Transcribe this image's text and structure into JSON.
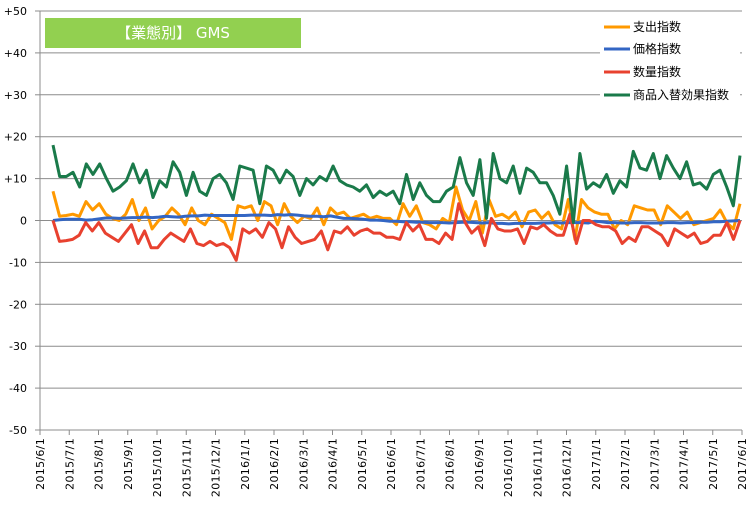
{
  "chart_data": {
    "type": "line",
    "title": "【業態別】 GMS",
    "title_box_color": "#92d050",
    "ylim": [
      -50,
      50
    ],
    "y_ticks": [
      50,
      40,
      30,
      20,
      10,
      0,
      -10,
      -20,
      -30,
      -40,
      -50
    ],
    "y_tick_labels": [
      "+50",
      "+40",
      "+30",
      "+20",
      "+10",
      "0",
      "-10",
      "-20",
      "-30",
      "-40",
      "-50"
    ],
    "x_tick_labels": [
      "2015/6/1",
      "2015/7/1",
      "2015/8/1",
      "2015/9/1",
      "2015/10/1",
      "2015/11/1",
      "2015/12/1",
      "2016/1/1",
      "2016/2/1",
      "2016/3/1",
      "2016/4/1",
      "2016/5/1",
      "2016/6/1",
      "2016/7/1",
      "2016/8/1",
      "2016/9/1",
      "2016/10/1",
      "2016/11/1",
      "2016/12/1",
      "2017/1/1",
      "2017/2/1",
      "2017/3/1",
      "2017/4/1",
      "2017/5/1",
      "2017/6/1"
    ],
    "grid": true,
    "legend_placement": "top-right",
    "series": [
      {
        "name": "支出指数",
        "color": "#ff9900",
        "values": [
          7,
          1,
          1.2,
          1.5,
          1,
          4.5,
          2.5,
          4,
          1.5,
          0.5,
          0,
          1.5,
          5,
          0,
          3,
          -2,
          0,
          1,
          3,
          1.5,
          -1,
          3,
          0,
          -1,
          1.5,
          0.5,
          -0.5,
          -4.5,
          3.5,
          3,
          3.5,
          0,
          4.5,
          3.5,
          -1,
          4,
          1,
          -0.5,
          1,
          0.5,
          3,
          -1,
          3,
          1.5,
          2,
          0.5,
          1,
          1.5,
          0.5,
          1,
          0.5,
          0.5,
          -1,
          4,
          1,
          3.5,
          -0.5,
          -1,
          -2,
          0.5,
          -0.5,
          8,
          2.5,
          0,
          4.5,
          -3,
          5,
          1,
          1.5,
          0.5,
          2,
          -1.5,
          2,
          2.5,
          0.5,
          2,
          -1,
          -2,
          5,
          -4.5,
          5,
          3,
          2,
          1.5,
          1.5,
          -2,
          0,
          -1,
          3.5,
          3,
          2.5,
          2.5,
          -1,
          3.5,
          2,
          0.5,
          2,
          -1,
          -0.5,
          0,
          0.5,
          2.5,
          -0.5,
          -2,
          4
        ]
      },
      {
        "name": "価格指数",
        "color": "#3366c4",
        "values": [
          0,
          0.2,
          0.3,
          0.3,
          0.3,
          0.1,
          0.2,
          0.4,
          0.6,
          0.6,
          0.5,
          0.6,
          0.7,
          0.7,
          0.8,
          0.7,
          0.8,
          1,
          0.9,
          0.8,
          1,
          1.1,
          1.1,
          1.3,
          1.2,
          1.2,
          1.2,
          1.2,
          1.2,
          1.2,
          1.3,
          1.3,
          1.3,
          1.2,
          1.4,
          1.3,
          1.4,
          1.3,
          1.1,
          1,
          1,
          0.9,
          1.1,
          0.8,
          0.5,
          0.5,
          0.4,
          0.3,
          0.1,
          0.1,
          0,
          -0.2,
          -0.2,
          -0.3,
          -0.3,
          -0.4,
          -0.4,
          -0.5,
          -0.5,
          -0.5,
          -0.6,
          -0.5,
          -0.4,
          -0.4,
          -0.5,
          -0.6,
          -0.5,
          -0.7,
          -0.7,
          -0.8,
          -0.7,
          -0.7,
          -0.7,
          -0.7,
          -0.6,
          -0.6,
          -0.5,
          -0.6,
          -0.5,
          -0.5,
          -0.5,
          -0.6,
          -0.2,
          -0.3,
          -0.5,
          -0.5,
          -0.6,
          -0.6,
          -0.5,
          -0.5,
          -0.6,
          -0.6,
          -0.6,
          -0.5,
          -0.5,
          -0.6,
          -0.5,
          -0.5,
          -0.4,
          -0.4,
          -0.3,
          -0.3,
          -0.2,
          -0.1,
          0
        ]
      },
      {
        "name": "数量指数",
        "color": "#e8412f",
        "values": [
          0,
          -5,
          -4.8,
          -4.5,
          -3.5,
          -0.5,
          -2.5,
          -0.5,
          -3,
          -4,
          -5,
          -3,
          -1,
          -5.5,
          -2.5,
          -6.5,
          -6.5,
          -4.5,
          -3,
          -4,
          -5,
          -2,
          -5.5,
          -6,
          -5,
          -6,
          -5.5,
          -6.5,
          -9.5,
          -2,
          -3,
          -2,
          -4,
          -0.5,
          -2,
          -6.5,
          -1.5,
          -4,
          -5.5,
          -5,
          -4.5,
          -2.5,
          -7,
          -2.5,
          -3,
          -1.5,
          -3.5,
          -2.5,
          -2,
          -3,
          -3,
          -4,
          -4,
          -4.5,
          -0.5,
          -2.5,
          -1,
          -4.5,
          -4.5,
          -5.5,
          -3,
          -4.5,
          4,
          -0.5,
          -3,
          -1.5,
          -6,
          0.5,
          -2,
          -2.5,
          -2.5,
          -2,
          -5.5,
          -1.5,
          -2,
          -1,
          -2.5,
          -3.5,
          -3.5,
          1.5,
          -5.5,
          0,
          0,
          -1,
          -1.5,
          -1.5,
          -2.5,
          -5.5,
          -4,
          -5,
          -1.5,
          -1.5,
          -2.5,
          -3.5,
          -6,
          -2,
          -3,
          -4,
          -3,
          -5.5,
          -5,
          -3.5,
          -3.5,
          -0.5,
          -4.5,
          0
        ]
      },
      {
        "name": "商品入替効果指数",
        "color": "#1a7a4a",
        "values": [
          18,
          10.5,
          10.5,
          11.5,
          8,
          13.5,
          11,
          13.5,
          10,
          7,
          8,
          9.5,
          13.5,
          9,
          12,
          5.5,
          9.5,
          8,
          14,
          11.5,
          6,
          11.5,
          7,
          6,
          10,
          11,
          9,
          5,
          13,
          12.5,
          12,
          4,
          13,
          12,
          9,
          12,
          10.5,
          6,
          10,
          8.5,
          10.5,
          9.5,
          13,
          9.5,
          8.5,
          8,
          7,
          8.5,
          5.5,
          7,
          6,
          7,
          4,
          11,
          5,
          9,
          6,
          4.5,
          4.5,
          7,
          8,
          15,
          9,
          6,
          14.5,
          0.5,
          16,
          10,
          9,
          13,
          6.5,
          12.5,
          11.5,
          9,
          9,
          6,
          1.5,
          13,
          -0.5,
          16,
          7.5,
          9,
          8,
          11,
          6.5,
          9.5,
          8,
          16.5,
          12.5,
          12,
          16,
          10,
          15.5,
          12.5,
          10,
          14,
          8.5,
          9,
          7.5,
          11,
          12,
          8,
          3.5,
          15.5
        ]
      }
    ]
  }
}
